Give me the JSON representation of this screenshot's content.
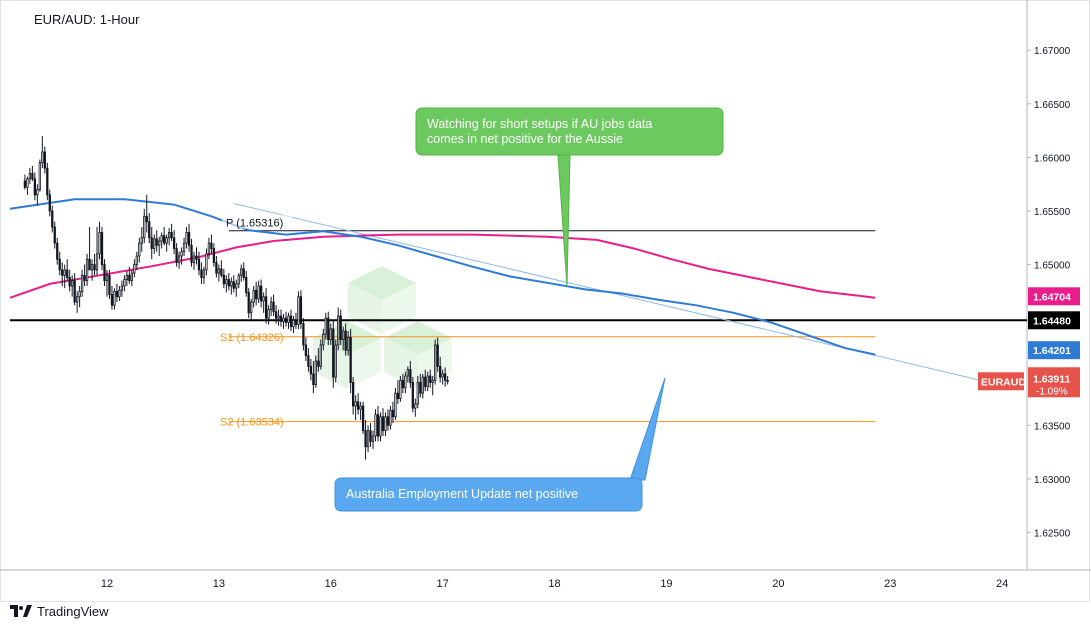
{
  "chart_data": {
    "type": "candlestick",
    "title": "EUR/AUD: 1-Hour",
    "symbol_badge": "EURAUD",
    "last_price": "1.63911",
    "change_pct": "-1.09%",
    "y_range": [
      1.6215,
      1.6745
    ],
    "y_ticks": [
      1.625,
      1.63,
      1.635,
      1.64,
      1.645,
      1.65,
      1.655,
      1.66,
      1.665,
      1.67
    ],
    "y_tick_labels": [
      "1.62500",
      "1.63000",
      "1.63500",
      "1.64000",
      "1.64500",
      "1.65000",
      "1.65500",
      "1.66000",
      "1.66500",
      "1.67000"
    ],
    "x_day_labels": [
      {
        "label": "12",
        "bar": 33
      },
      {
        "label": "13",
        "bar": 78
      },
      {
        "label": "16",
        "bar": 123
      },
      {
        "label": "17",
        "bar": 168
      },
      {
        "label": "18",
        "bar": 213
      },
      {
        "label": "19",
        "bar": 258
      },
      {
        "label": "20",
        "bar": 303
      },
      {
        "label": "23",
        "bar": 348
      },
      {
        "label": "24",
        "bar": 393
      }
    ],
    "bar_domain": [
      -6,
      403
    ],
    "horizontal_levels": [
      {
        "name": "P (1.65316)",
        "value": 1.65316,
        "from_bar": 82,
        "to_bar": 342,
        "color": "#131722",
        "style": "thin"
      },
      {
        "name": "S1 (1.64326)",
        "value": 1.64326,
        "from_bar": 82,
        "to_bar": 342,
        "color": "#f7931a",
        "style": "thin"
      },
      {
        "name": "S2 (1.63534)",
        "value": 1.63534,
        "from_bar": 82,
        "to_bar": 342,
        "color": "#f7931a",
        "style": "thin"
      },
      {
        "name": "",
        "value": 1.6448,
        "from_bar": -6,
        "to_bar": 403,
        "color": "#000000",
        "style": "thick"
      }
    ],
    "level_badges": [
      {
        "text": "1.64704",
        "value": 1.64704,
        "color": "#e91e8c"
      },
      {
        "text": "1.64480",
        "value": 1.6448,
        "color": "#000000"
      },
      {
        "text": "1.64201",
        "value": 1.64201,
        "color": "#2e7bd6"
      }
    ],
    "trendline": {
      "from": [
        84,
        1.6557
      ],
      "to": [
        397,
        1.6385
      ],
      "color": "#8fb8e6"
    },
    "ma_blue": {
      "color": "#2e7bd6",
      "points": [
        [
          -6,
          1.6552
        ],
        [
          20,
          1.6561
        ],
        [
          40,
          1.6561
        ],
        [
          60,
          1.6556
        ],
        [
          75,
          1.6545
        ],
        [
          90,
          1.6532
        ],
        [
          105,
          1.6528
        ],
        [
          120,
          1.6531
        ],
        [
          135,
          1.6526
        ],
        [
          150,
          1.6518
        ],
        [
          165,
          1.6508
        ],
        [
          180,
          1.6498
        ],
        [
          195,
          1.6489
        ],
        [
          210,
          1.6483
        ],
        [
          225,
          1.6477
        ],
        [
          240,
          1.6473
        ],
        [
          255,
          1.6467
        ],
        [
          270,
          1.6462
        ],
        [
          285,
          1.6455
        ],
        [
          300,
          1.6446
        ],
        [
          315,
          1.6434
        ],
        [
          330,
          1.6422
        ],
        [
          342,
          1.6416
        ]
      ]
    },
    "ma_pink": {
      "color": "#e91e8c",
      "points": [
        [
          -6,
          1.6469
        ],
        [
          10,
          1.6482
        ],
        [
          30,
          1.649
        ],
        [
          50,
          1.6498
        ],
        [
          70,
          1.6507
        ],
        [
          85,
          1.6516
        ],
        [
          100,
          1.6522
        ],
        [
          120,
          1.6526
        ],
        [
          150,
          1.6528
        ],
        [
          180,
          1.6528
        ],
        [
          210,
          1.6526
        ],
        [
          230,
          1.6523
        ],
        [
          245,
          1.6515
        ],
        [
          260,
          1.6505
        ],
        [
          275,
          1.6496
        ],
        [
          290,
          1.6489
        ],
        [
          305,
          1.6482
        ],
        [
          320,
          1.6475
        ],
        [
          335,
          1.6471
        ],
        [
          342,
          1.6469
        ]
      ]
    },
    "candles": [
      [
        1.6578,
        1.6584,
        1.657,
        1.6572
      ],
      [
        1.6572,
        1.6582,
        1.6565,
        1.658
      ],
      [
        1.658,
        1.659,
        1.6575,
        1.6585
      ],
      [
        1.6585,
        1.6592,
        1.6578,
        1.658
      ],
      [
        1.658,
        1.6586,
        1.656,
        1.6565
      ],
      [
        1.6565,
        1.6575,
        1.6555,
        1.657
      ],
      [
        1.657,
        1.6598,
        1.6568,
        1.6595
      ],
      [
        1.6595,
        1.662,
        1.659,
        1.6605
      ],
      [
        1.6605,
        1.661,
        1.6585,
        1.659
      ],
      [
        1.659,
        1.6595,
        1.656,
        1.6565
      ],
      [
        1.6565,
        1.657,
        1.6545,
        1.655
      ],
      [
        1.655,
        1.6555,
        1.653,
        1.6535
      ],
      [
        1.6535,
        1.654,
        1.6515,
        1.652
      ],
      [
        1.652,
        1.6525,
        1.65,
        1.6505
      ],
      [
        1.6505,
        1.6512,
        1.649,
        1.6495
      ],
      [
        1.6495,
        1.6502,
        1.648,
        1.649
      ],
      [
        1.649,
        1.65,
        1.6478,
        1.6495
      ],
      [
        1.6495,
        1.6505,
        1.6485,
        1.6488
      ],
      [
        1.6488,
        1.6495,
        1.6475,
        1.648
      ],
      [
        1.648,
        1.649,
        1.647,
        1.6485
      ],
      [
        1.6485,
        1.6492,
        1.6462,
        1.6465
      ],
      [
        1.6465,
        1.6475,
        1.6455,
        1.647
      ],
      [
        1.647,
        1.648,
        1.646,
        1.6475
      ],
      [
        1.6475,
        1.6495,
        1.647,
        1.649
      ],
      [
        1.649,
        1.65,
        1.648,
        1.6485
      ],
      [
        1.6485,
        1.651,
        1.648,
        1.6505
      ],
      [
        1.6505,
        1.6535,
        1.65,
        1.6495
      ],
      [
        1.6495,
        1.6505,
        1.6485,
        1.65
      ],
      [
        1.65,
        1.651,
        1.649,
        1.6495
      ],
      [
        1.6495,
        1.6535,
        1.649,
        1.651
      ],
      [
        1.651,
        1.654,
        1.6505,
        1.653
      ],
      [
        1.653,
        1.6535,
        1.6495,
        1.65
      ],
      [
        1.65,
        1.6505,
        1.648,
        1.6485
      ],
      [
        1.6485,
        1.6495,
        1.647,
        1.649
      ],
      [
        1.649,
        1.6495,
        1.6468,
        1.6472
      ],
      [
        1.6472,
        1.648,
        1.6458,
        1.6462
      ],
      [
        1.6462,
        1.6478,
        1.6458,
        1.6475
      ],
      [
        1.6475,
        1.6482,
        1.6465,
        1.647
      ],
      [
        1.647,
        1.648,
        1.6466,
        1.6476
      ],
      [
        1.6476,
        1.6485,
        1.647,
        1.648
      ],
      [
        1.648,
        1.649,
        1.6475,
        1.6486
      ],
      [
        1.6486,
        1.6494,
        1.648,
        1.649
      ],
      [
        1.649,
        1.6498,
        1.6482,
        1.6485
      ],
      [
        1.6485,
        1.6495,
        1.648,
        1.6492
      ],
      [
        1.6492,
        1.6505,
        1.6488,
        1.65
      ],
      [
        1.65,
        1.6512,
        1.6495,
        1.6508
      ],
      [
        1.6508,
        1.6525,
        1.6502,
        1.652
      ],
      [
        1.652,
        1.6535,
        1.6512,
        1.6525
      ],
      [
        1.6525,
        1.6552,
        1.652,
        1.6545
      ],
      [
        1.6545,
        1.6565,
        1.653,
        1.654
      ],
      [
        1.654,
        1.6548,
        1.652,
        1.6525
      ],
      [
        1.6525,
        1.6535,
        1.6505,
        1.6515
      ],
      [
        1.6515,
        1.6528,
        1.651,
        1.6524
      ],
      [
        1.6524,
        1.6532,
        1.6512,
        1.6518
      ],
      [
        1.6518,
        1.6526,
        1.6508,
        1.6522
      ],
      [
        1.6522,
        1.653,
        1.6515,
        1.6527
      ],
      [
        1.6527,
        1.6535,
        1.6518,
        1.652
      ],
      [
        1.652,
        1.6528,
        1.6512,
        1.6525
      ],
      [
        1.6525,
        1.6534,
        1.6518,
        1.653
      ],
      [
        1.653,
        1.6538,
        1.6522,
        1.6525
      ],
      [
        1.6525,
        1.6532,
        1.651,
        1.6515
      ],
      [
        1.6515,
        1.652,
        1.6498,
        1.6502
      ],
      [
        1.6502,
        1.6512,
        1.6496,
        1.6508
      ],
      [
        1.6508,
        1.6516,
        1.65,
        1.6512
      ],
      [
        1.6512,
        1.6525,
        1.6508,
        1.652
      ],
      [
        1.652,
        1.6535,
        1.6515,
        1.653
      ],
      [
        1.653,
        1.6538,
        1.6512,
        1.6518
      ],
      [
        1.6518,
        1.6524,
        1.6498,
        1.6502
      ],
      [
        1.6502,
        1.6512,
        1.6495,
        1.6508
      ],
      [
        1.6508,
        1.6516,
        1.65,
        1.6505
      ],
      [
        1.6505,
        1.6512,
        1.649,
        1.6495
      ],
      [
        1.6495,
        1.6502,
        1.6482,
        1.6488
      ],
      [
        1.6488,
        1.6498,
        1.6482,
        1.6495
      ],
      [
        1.6495,
        1.6515,
        1.649,
        1.651
      ],
      [
        1.651,
        1.6525,
        1.6505,
        1.652
      ],
      [
        1.652,
        1.6528,
        1.651,
        1.6515
      ],
      [
        1.6515,
        1.652,
        1.6498,
        1.6502
      ],
      [
        1.6502,
        1.6508,
        1.6488,
        1.6492
      ],
      [
        1.6492,
        1.65,
        1.6484,
        1.6496
      ],
      [
        1.6496,
        1.6504,
        1.6488,
        1.649
      ],
      [
        1.649,
        1.6496,
        1.6478,
        1.6482
      ],
      [
        1.6482,
        1.649,
        1.6474,
        1.6486
      ],
      [
        1.6486,
        1.6492,
        1.6476,
        1.648
      ],
      [
        1.648,
        1.6488,
        1.6472,
        1.6484
      ],
      [
        1.6484,
        1.649,
        1.6474,
        1.6478
      ],
      [
        1.6478,
        1.6486,
        1.647,
        1.6482
      ],
      [
        1.6482,
        1.6492,
        1.6478,
        1.649
      ],
      [
        1.649,
        1.65,
        1.6484,
        1.6496
      ],
      [
        1.6496,
        1.6502,
        1.6485,
        1.6488
      ],
      [
        1.6488,
        1.6494,
        1.647,
        1.6474
      ],
      [
        1.6474,
        1.6478,
        1.645,
        1.6455
      ],
      [
        1.6455,
        1.6468,
        1.6448,
        1.6465
      ],
      [
        1.6465,
        1.648,
        1.646,
        1.6476
      ],
      [
        1.6476,
        1.6484,
        1.6462,
        1.6468
      ],
      [
        1.6468,
        1.6485,
        1.6464,
        1.648
      ],
      [
        1.648,
        1.6486,
        1.646,
        1.6466
      ],
      [
        1.6466,
        1.6474,
        1.6455,
        1.647
      ],
      [
        1.647,
        1.6478,
        1.6445,
        1.645
      ],
      [
        1.645,
        1.6462,
        1.6444,
        1.6458
      ],
      [
        1.6458,
        1.647,
        1.6452,
        1.6465
      ],
      [
        1.6465,
        1.6472,
        1.6452,
        1.6456
      ],
      [
        1.6456,
        1.6462,
        1.6445,
        1.645
      ],
      [
        1.645,
        1.6458,
        1.6443,
        1.6452
      ],
      [
        1.6452,
        1.6458,
        1.6442,
        1.6447
      ],
      [
        1.6447,
        1.6454,
        1.644,
        1.645
      ],
      [
        1.645,
        1.6456,
        1.6442,
        1.6446
      ],
      [
        1.6446,
        1.6455,
        1.644,
        1.6452
      ],
      [
        1.6452,
        1.6458,
        1.6438,
        1.6442
      ],
      [
        1.6442,
        1.6452,
        1.6436,
        1.6448
      ],
      [
        1.6448,
        1.6455,
        1.644,
        1.6444
      ],
      [
        1.6444,
        1.6475,
        1.644,
        1.647
      ],
      [
        1.647,
        1.6476,
        1.644,
        1.6445
      ],
      [
        1.6445,
        1.645,
        1.642,
        1.6425
      ],
      [
        1.6425,
        1.6432,
        1.641,
        1.6415
      ],
      [
        1.6415,
        1.6422,
        1.64,
        1.6405
      ],
      [
        1.6405,
        1.6412,
        1.6392,
        1.6398
      ],
      [
        1.6398,
        1.641,
        1.638,
        1.6388
      ],
      [
        1.6388,
        1.6415,
        1.6385,
        1.641
      ],
      [
        1.641,
        1.6422,
        1.64,
        1.6405
      ],
      [
        1.6405,
        1.643,
        1.6402,
        1.6425
      ],
      [
        1.6425,
        1.644,
        1.642,
        1.6435
      ],
      [
        1.6435,
        1.6455,
        1.643,
        1.645
      ],
      [
        1.645,
        1.6456,
        1.6425,
        1.643
      ],
      [
        1.643,
        1.6445,
        1.6425,
        1.644
      ],
      [
        1.644,
        1.6448,
        1.6385,
        1.6395
      ],
      [
        1.6395,
        1.643,
        1.639,
        1.6425
      ],
      [
        1.6425,
        1.646,
        1.642,
        1.6452
      ],
      [
        1.6452,
        1.6458,
        1.6425,
        1.643
      ],
      [
        1.643,
        1.6442,
        1.642,
        1.6438
      ],
      [
        1.6438,
        1.6445,
        1.6415,
        1.642
      ],
      [
        1.642,
        1.6438,
        1.6415,
        1.6432
      ],
      [
        1.6432,
        1.644,
        1.638,
        1.639
      ],
      [
        1.639,
        1.6395,
        1.636,
        1.6368
      ],
      [
        1.6368,
        1.6378,
        1.6355,
        1.6372
      ],
      [
        1.6372,
        1.638,
        1.636,
        1.6365
      ],
      [
        1.6365,
        1.6372,
        1.6355,
        1.6368
      ],
      [
        1.6368,
        1.6372,
        1.6342,
        1.6345
      ],
      [
        1.6345,
        1.6355,
        1.6318,
        1.633
      ],
      [
        1.633,
        1.635,
        1.6325,
        1.6345
      ],
      [
        1.6345,
        1.6352,
        1.633,
        1.6335
      ],
      [
        1.6335,
        1.6345,
        1.6328,
        1.634
      ],
      [
        1.634,
        1.6365,
        1.6335,
        1.636
      ],
      [
        1.636,
        1.6368,
        1.6335,
        1.634
      ],
      [
        1.634,
        1.6362,
        1.6335,
        1.6358
      ],
      [
        1.6358,
        1.6366,
        1.634,
        1.6345
      ],
      [
        1.6345,
        1.6362,
        1.634,
        1.6358
      ],
      [
        1.6358,
        1.6365,
        1.6345,
        1.635
      ],
      [
        1.635,
        1.6368,
        1.6346,
        1.6364
      ],
      [
        1.6364,
        1.6372,
        1.6352,
        1.6358
      ],
      [
        1.6358,
        1.6385,
        1.6355,
        1.638
      ],
      [
        1.638,
        1.6392,
        1.637,
        1.6375
      ],
      [
        1.6375,
        1.6396,
        1.6372,
        1.6392
      ],
      [
        1.6392,
        1.6398,
        1.638,
        1.6385
      ],
      [
        1.6385,
        1.64,
        1.638,
        1.6396
      ],
      [
        1.6396,
        1.6405,
        1.639,
        1.6402
      ],
      [
        1.6402,
        1.641,
        1.6385,
        1.639
      ],
      [
        1.639,
        1.6395,
        1.6362,
        1.6366
      ],
      [
        1.6366,
        1.6375,
        1.6358,
        1.637
      ],
      [
        1.637,
        1.6396,
        1.6366,
        1.639
      ],
      [
        1.639,
        1.6398,
        1.6376,
        1.638
      ],
      [
        1.638,
        1.6398,
        1.6375,
        1.6395
      ],
      [
        1.6395,
        1.6402,
        1.6382,
        1.6386
      ],
      [
        1.6386,
        1.64,
        1.6382,
        1.6396
      ],
      [
        1.6396,
        1.6402,
        1.6385,
        1.639
      ],
      [
        1.639,
        1.6396,
        1.6378,
        1.6392
      ],
      [
        1.6392,
        1.643,
        1.6388,
        1.6425
      ],
      [
        1.6425,
        1.6432,
        1.64,
        1.6405
      ],
      [
        1.6405,
        1.6414,
        1.639,
        1.6395
      ],
      [
        1.6395,
        1.6402,
        1.6388,
        1.6398
      ],
      [
        1.6398,
        1.6404,
        1.6386,
        1.6392
      ],
      [
        1.6392,
        1.6396,
        1.6388,
        1.6391
      ]
    ]
  },
  "annotations": {
    "pivot_label": "P (1.65316)",
    "s1_label": "S1 (1.64326)",
    "s2_label": "S2 (1.63534)",
    "callout_top_line1": "Watching for short setups if AU jobs data",
    "callout_top_line2": "comes in net positive for the Aussie",
    "callout_bottom": "Australia Employment Update net positive",
    "colors": {
      "callout_green": "#6cc95f",
      "callout_blue": "#5aa8f0",
      "badge_red": "#e5534b"
    }
  },
  "footer": {
    "brand": "TradingView"
  }
}
